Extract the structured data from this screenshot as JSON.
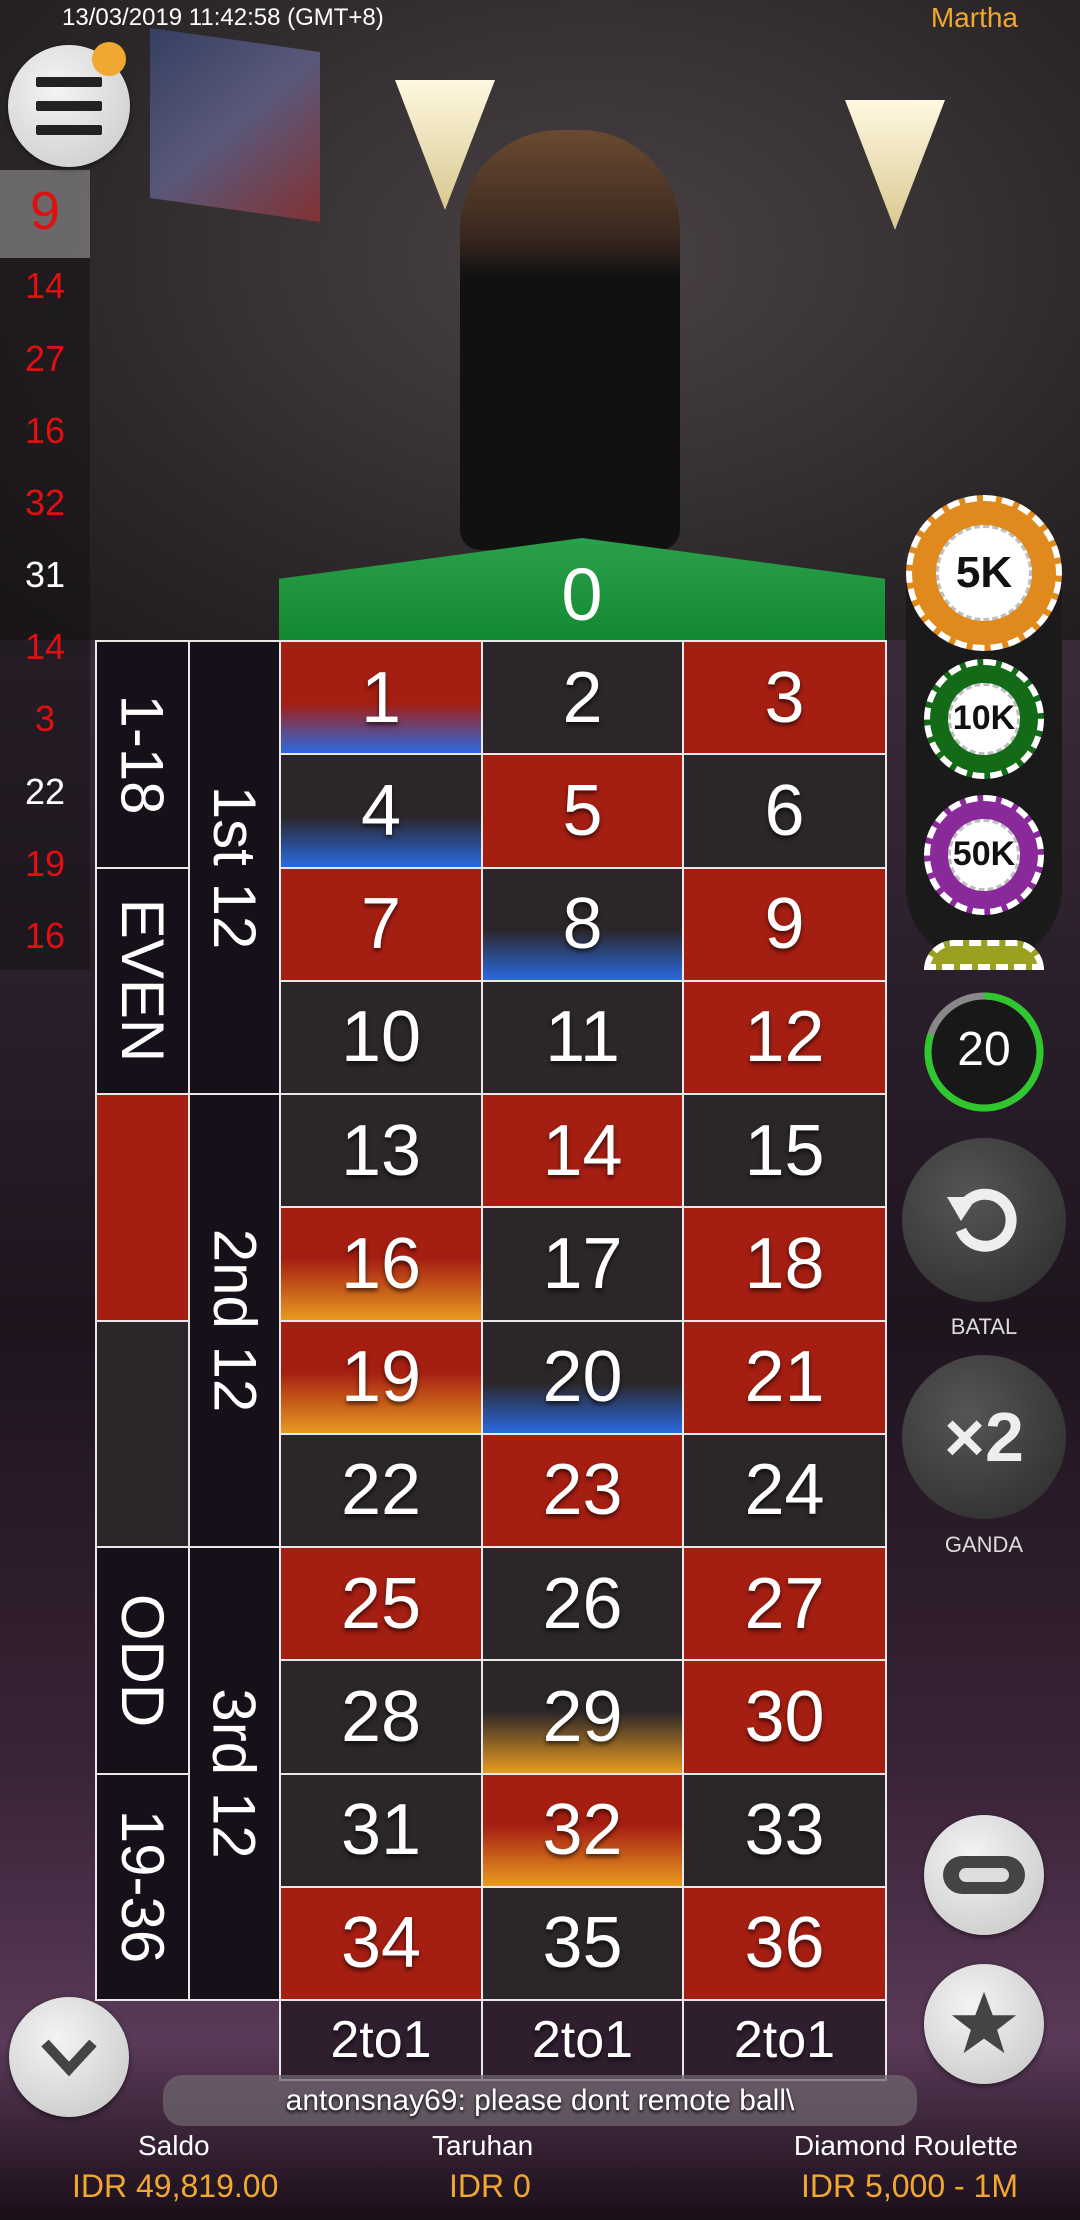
{
  "status": {
    "timestamp": "13/03/2019 11:42:58 (GMT+8)",
    "username": "Martha"
  },
  "history": [
    "9",
    "14",
    "27",
    "16",
    "32",
    "31",
    "14",
    "3",
    "22",
    "19",
    "16"
  ],
  "history_colors": [
    "red",
    "red",
    "red",
    "red",
    "red",
    "black",
    "red",
    "red",
    "black",
    "red",
    "red"
  ],
  "table": {
    "zero": "0",
    "red_numbers": [
      1,
      3,
      5,
      7,
      9,
      12,
      14,
      16,
      18,
      19,
      21,
      23,
      25,
      27,
      30,
      32,
      34,
      36
    ],
    "hot_numbers": [
      "16",
      "19",
      "29",
      "32"
    ],
    "cold_numbers": [
      "1",
      "4",
      "8",
      "20"
    ],
    "columns": [
      "2to1",
      "2to1",
      "2to1"
    ],
    "dozens": [
      "1st 12",
      "2nd 12",
      "3rd 12"
    ],
    "outside": [
      "1-18",
      "EVEN",
      "",
      "",
      "ODD",
      "19-36"
    ],
    "colors": {
      "red": "#a51e12",
      "black": "#2b2629",
      "green": "#1f9a40",
      "hot": "#e89a20",
      "cold": "#2a6ae0"
    }
  },
  "chips": [
    {
      "label": "5K",
      "color": "#e08a1e"
    },
    {
      "label": "10K",
      "color": "#136b18"
    },
    {
      "label": "50K",
      "color": "#8a2a9a"
    },
    {
      "label": "",
      "color": "#9aa020"
    }
  ],
  "timer": {
    "value": "20",
    "remaining_fraction": 0.8
  },
  "buttons": {
    "undo": "BATAL",
    "double": "GANDA",
    "double_icon_text": "×2"
  },
  "chat": {
    "message": "antonsnay69: please dont remote ball\\"
  },
  "footer": {
    "balance_label": "Saldo",
    "balance": "IDR 49,819.00",
    "bet_label": "Taruhan",
    "bet": "IDR 0",
    "table_name": "Diamond Roulette",
    "limits": "IDR 5,000 - 1M"
  },
  "accent": "#f0a830"
}
